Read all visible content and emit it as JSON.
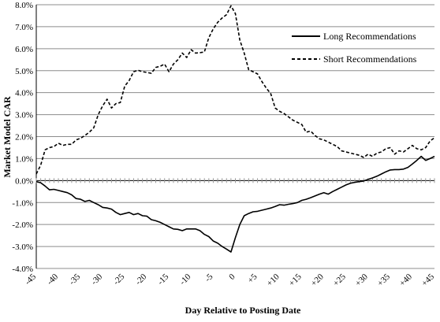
{
  "chart_data": {
    "type": "line",
    "xlabel": "Day Relative to Posting Date",
    "ylabel": "Market Model CAR",
    "xlim": [
      -45,
      45
    ],
    "ylim": [
      -4.0,
      8.0
    ],
    "x_ticks": [
      -45,
      -40,
      -35,
      -30,
      -25,
      -20,
      -15,
      -10,
      -5,
      0,
      5,
      10,
      15,
      20,
      25,
      30,
      35,
      40,
      45
    ],
    "x_tick_labels": [
      "-45",
      "-40",
      "-35",
      "-30",
      "-25",
      "-20",
      "-15",
      "-10",
      "-5",
      "0",
      "+5",
      "+10",
      "+15",
      "+20",
      "+25",
      "+30",
      "+35",
      "+40",
      "+45"
    ],
    "y_ticks": [
      -4,
      -3,
      -2,
      -1,
      0,
      1,
      2,
      3,
      4,
      5,
      6,
      7,
      8
    ],
    "y_tick_labels": [
      "-4.0%",
      "-3.0%",
      "-2.0%",
      "-1.0%",
      "0.0%",
      "1.0%",
      "2.0%",
      "3.0%",
      "4.0%",
      "5.0%",
      "6.0%",
      "7.0%",
      "8.0%"
    ],
    "grid": true,
    "legend_position": "top-right",
    "series": [
      {
        "name": "Long Recommendations",
        "style": "solid",
        "color": "#000000",
        "points": [
          [
            -45,
            -0.05
          ],
          [
            -44,
            -0.1
          ],
          [
            -43,
            -0.25
          ],
          [
            -42,
            -0.42
          ],
          [
            -41,
            -0.4
          ],
          [
            -40,
            -0.45
          ],
          [
            -39,
            -0.5
          ],
          [
            -38,
            -0.55
          ],
          [
            -37,
            -0.65
          ],
          [
            -36,
            -0.82
          ],
          [
            -35,
            -0.85
          ],
          [
            -34,
            -0.95
          ],
          [
            -33,
            -0.9
          ],
          [
            -32,
            -1.0
          ],
          [
            -31,
            -1.1
          ],
          [
            -30,
            -1.22
          ],
          [
            -29,
            -1.25
          ],
          [
            -28,
            -1.3
          ],
          [
            -27,
            -1.45
          ],
          [
            -26,
            -1.55
          ],
          [
            -25,
            -1.5
          ],
          [
            -24,
            -1.45
          ],
          [
            -23,
            -1.55
          ],
          [
            -22,
            -1.5
          ],
          [
            -21,
            -1.6
          ],
          [
            -20,
            -1.62
          ],
          [
            -19,
            -1.78
          ],
          [
            -18,
            -1.83
          ],
          [
            -17,
            -1.9
          ],
          [
            -16,
            -2.0
          ],
          [
            -15,
            -2.1
          ],
          [
            -14,
            -2.2
          ],
          [
            -13,
            -2.22
          ],
          [
            -12,
            -2.28
          ],
          [
            -11,
            -2.2
          ],
          [
            -10,
            -2.2
          ],
          [
            -9,
            -2.2
          ],
          [
            -8,
            -2.28
          ],
          [
            -7,
            -2.45
          ],
          [
            -6,
            -2.55
          ],
          [
            -5,
            -2.75
          ],
          [
            -4,
            -2.85
          ],
          [
            -3,
            -3.0
          ],
          [
            -2,
            -3.12
          ],
          [
            -1,
            -3.25
          ],
          [
            0,
            -2.6
          ],
          [
            1,
            -2.0
          ],
          [
            2,
            -1.6
          ],
          [
            3,
            -1.5
          ],
          [
            4,
            -1.42
          ],
          [
            5,
            -1.4
          ],
          [
            6,
            -1.35
          ],
          [
            7,
            -1.3
          ],
          [
            8,
            -1.25
          ],
          [
            9,
            -1.18
          ],
          [
            10,
            -1.1
          ],
          [
            11,
            -1.12
          ],
          [
            12,
            -1.08
          ],
          [
            13,
            -1.05
          ],
          [
            14,
            -1.0
          ],
          [
            15,
            -0.9
          ],
          [
            16,
            -0.85
          ],
          [
            17,
            -0.78
          ],
          [
            18,
            -0.7
          ],
          [
            19,
            -0.62
          ],
          [
            20,
            -0.55
          ],
          [
            21,
            -0.62
          ],
          [
            22,
            -0.5
          ],
          [
            23,
            -0.4
          ],
          [
            24,
            -0.3
          ],
          [
            25,
            -0.2
          ],
          [
            26,
            -0.12
          ],
          [
            27,
            -0.08
          ],
          [
            28,
            -0.05
          ],
          [
            29,
            -0.02
          ],
          [
            30,
            0.05
          ],
          [
            31,
            0.12
          ],
          [
            32,
            0.2
          ],
          [
            33,
            0.3
          ],
          [
            34,
            0.4
          ],
          [
            35,
            0.48
          ],
          [
            36,
            0.5
          ],
          [
            37,
            0.5
          ],
          [
            38,
            0.52
          ],
          [
            39,
            0.6
          ],
          [
            40,
            0.75
          ],
          [
            41,
            0.92
          ],
          [
            42,
            1.1
          ],
          [
            43,
            0.92
          ],
          [
            44,
            1.0
          ],
          [
            45,
            1.1
          ]
        ]
      },
      {
        "name": "Short Recommendations",
        "style": "dashed",
        "color": "#000000",
        "points": [
          [
            -45,
            0.3
          ],
          [
            -44,
            0.7
          ],
          [
            -43,
            1.4
          ],
          [
            -42,
            1.5
          ],
          [
            -41,
            1.55
          ],
          [
            -40,
            1.7
          ],
          [
            -39,
            1.6
          ],
          [
            -38,
            1.65
          ],
          [
            -37,
            1.65
          ],
          [
            -36,
            1.85
          ],
          [
            -35,
            1.92
          ],
          [
            -34,
            2.05
          ],
          [
            -33,
            2.2
          ],
          [
            -32,
            2.4
          ],
          [
            -31,
            3.0
          ],
          [
            -30,
            3.4
          ],
          [
            -29,
            3.7
          ],
          [
            -28,
            3.3
          ],
          [
            -27,
            3.5
          ],
          [
            -26,
            3.55
          ],
          [
            -25,
            4.3
          ],
          [
            -24,
            4.55
          ],
          [
            -23,
            4.95
          ],
          [
            -22,
            5.02
          ],
          [
            -21,
            4.95
          ],
          [
            -20,
            4.92
          ],
          [
            -19,
            4.88
          ],
          [
            -18,
            5.15
          ],
          [
            -17,
            5.2
          ],
          [
            -16,
            5.3
          ],
          [
            -15,
            4.95
          ],
          [
            -14,
            5.3
          ],
          [
            -13,
            5.5
          ],
          [
            -12,
            5.8
          ],
          [
            -11,
            5.6
          ],
          [
            -10,
            5.95
          ],
          [
            -9,
            5.8
          ],
          [
            -8,
            5.82
          ],
          [
            -7,
            5.85
          ],
          [
            -6,
            6.5
          ],
          [
            -5,
            6.9
          ],
          [
            -4,
            7.2
          ],
          [
            -3,
            7.4
          ],
          [
            -2,
            7.55
          ],
          [
            -1,
            7.95
          ],
          [
            0,
            7.6
          ],
          [
            1,
            6.4
          ],
          [
            2,
            5.8
          ],
          [
            3,
            5.05
          ],
          [
            4,
            4.95
          ],
          [
            5,
            4.85
          ],
          [
            6,
            4.5
          ],
          [
            7,
            4.2
          ],
          [
            8,
            3.95
          ],
          [
            9,
            3.3
          ],
          [
            10,
            3.15
          ],
          [
            11,
            3.05
          ],
          [
            12,
            2.9
          ],
          [
            13,
            2.75
          ],
          [
            14,
            2.65
          ],
          [
            15,
            2.55
          ],
          [
            16,
            2.2
          ],
          [
            17,
            2.25
          ],
          [
            18,
            2.05
          ],
          [
            19,
            1.9
          ],
          [
            20,
            1.85
          ],
          [
            21,
            1.75
          ],
          [
            22,
            1.65
          ],
          [
            23,
            1.55
          ],
          [
            24,
            1.35
          ],
          [
            25,
            1.3
          ],
          [
            26,
            1.25
          ],
          [
            27,
            1.2
          ],
          [
            28,
            1.15
          ],
          [
            29,
            1.05
          ],
          [
            30,
            1.2
          ],
          [
            31,
            1.1
          ],
          [
            32,
            1.25
          ],
          [
            33,
            1.3
          ],
          [
            34,
            1.45
          ],
          [
            35,
            1.5
          ],
          [
            36,
            1.2
          ],
          [
            37,
            1.35
          ],
          [
            38,
            1.3
          ],
          [
            39,
            1.45
          ],
          [
            40,
            1.6
          ],
          [
            41,
            1.45
          ],
          [
            42,
            1.4
          ],
          [
            43,
            1.5
          ],
          [
            44,
            1.8
          ],
          [
            45,
            1.95
          ]
        ]
      }
    ]
  }
}
